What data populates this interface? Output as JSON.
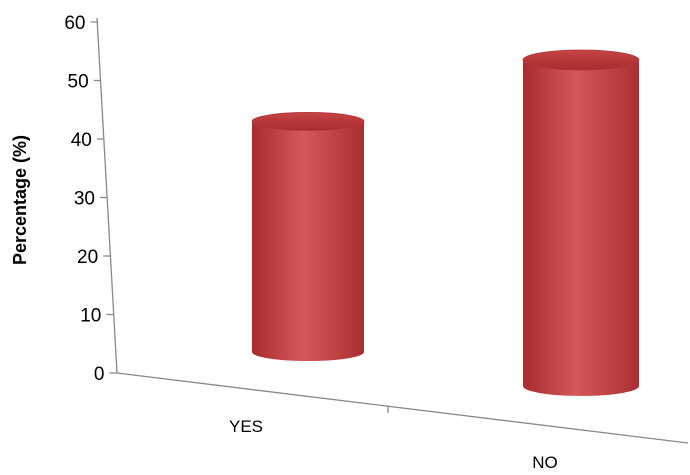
{
  "chart_data": {
    "type": "bar",
    "style": "3d-cylinder",
    "categories": [
      "YES",
      "NO"
    ],
    "values": [
      43.5,
      56.5
    ],
    "ylabel": "Percentage (%)",
    "ylim": [
      0,
      60
    ],
    "yticks": [
      0,
      10,
      20,
      30,
      40,
      50,
      60
    ],
    "grid": false,
    "bar_color": "#c0393b"
  }
}
